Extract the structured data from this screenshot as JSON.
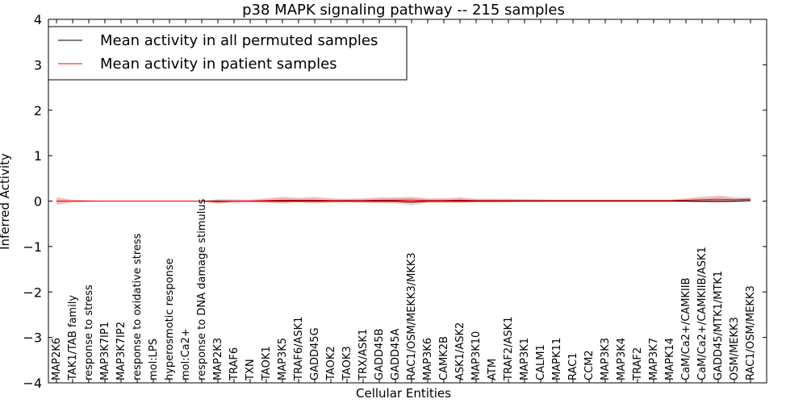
{
  "chart_data": {
    "type": "line",
    "title": "p38 MAPK signaling pathway -- 215 samples",
    "xlabel": "Cellular Entities",
    "ylabel": "Inferred Activity",
    "ylim": [
      -4,
      4
    ],
    "yticks": [
      -4,
      -3,
      -2,
      -1,
      0,
      1,
      2,
      3,
      4
    ],
    "ytick_labels": [
      "−4",
      "−3",
      "−2",
      "−1",
      "0",
      "1",
      "2",
      "3",
      "4"
    ],
    "legend_position": "top-left",
    "categories": [
      "MAP2K6",
      "TAK1/TAB family",
      "response to stress",
      "MAP3K7IP1",
      "MAP3K7IP2",
      "response to oxidative stress",
      "mol:LPS",
      "hyperosmotic response",
      "mol:Ca2+",
      "response to DNA damage stimulus",
      "MAP2K3",
      "TRAF6",
      "TXN",
      "TAOK1",
      "MAP3K5",
      "TRAF6/ASK1",
      "GADD45G",
      "TAOK2",
      "TAOK3",
      "TRX/ASK1",
      "GADD45B",
      "GADD45A",
      "RAC1/OSM/MEKK3/MKK3",
      "MAP3K6",
      "CAMK2B",
      "ASK1/ASK2",
      "MAP3K10",
      "ATM",
      "TRAF2/ASK1",
      "MAP3K1",
      "CALM1",
      "MAPK11",
      "RAC1",
      "CCM2",
      "MAP3K3",
      "MAP3K4",
      "TRAF2",
      "MAP3K7",
      "MAPK14",
      "CaM/Ca2+/CAMKIIB",
      "CaM/Ca2+/CAMKIIB/ASK1",
      "GADD45/MTK1/MTK1",
      "OSM/MEKK3",
      "RAC1/OSM/MEKK3"
    ],
    "series": [
      {
        "name": "Mean activity in all permuted samples",
        "color": "#000000",
        "band_color": "#c8c8d8",
        "values": [
          0,
          0,
          0,
          0,
          0,
          0,
          0,
          0,
          0,
          0,
          0,
          0,
          0,
          0,
          0,
          0,
          0,
          0,
          0,
          0,
          0,
          0,
          -0.02,
          0,
          0,
          0,
          0,
          0,
          0,
          0,
          0,
          0,
          0,
          0,
          0,
          0,
          0,
          0,
          0,
          0,
          0,
          0,
          0,
          0.01
        ],
        "band": [
          0.02,
          0.01,
          0.01,
          0.01,
          0.01,
          0.01,
          0.01,
          0.01,
          0.01,
          0.01,
          0.03,
          0.04,
          0.03,
          0.02,
          0.02,
          0.02,
          0.02,
          0.02,
          0.03,
          0.03,
          0.04,
          0.05,
          0.08,
          0.04,
          0.03,
          0.04,
          0.03,
          0.03,
          0.02,
          0.02,
          0.02,
          0.02,
          0.02,
          0.02,
          0.02,
          0.02,
          0.02,
          0.02,
          0.02,
          0.02,
          0.03,
          0.03,
          0.03,
          0.03
        ]
      },
      {
        "name": "Mean activity in patient samples",
        "color": "#ff0000",
        "band_color": "#f08080",
        "values": [
          0,
          0,
          0,
          0,
          0,
          0,
          0,
          0,
          0,
          0,
          -0.01,
          0,
          0,
          0.01,
          0.02,
          0.02,
          0.02,
          0.01,
          0.01,
          0.01,
          0.02,
          0.02,
          0.02,
          0.01,
          0.01,
          0.02,
          0.01,
          0.01,
          0.01,
          0.01,
          0.01,
          0.01,
          0.01,
          0.01,
          0.01,
          0.01,
          0.01,
          0.01,
          0.01,
          0.02,
          0.03,
          0.04,
          0.03,
          0.04
        ],
        "band": [
          0.08,
          0.03,
          0.02,
          0.01,
          0.01,
          0.01,
          0.01,
          0.01,
          0.01,
          0.01,
          0.05,
          0.03,
          0.03,
          0.05,
          0.07,
          0.05,
          0.07,
          0.05,
          0.04,
          0.05,
          0.06,
          0.06,
          0.07,
          0.05,
          0.05,
          0.06,
          0.04,
          0.04,
          0.04,
          0.03,
          0.03,
          0.02,
          0.02,
          0.02,
          0.02,
          0.02,
          0.02,
          0.02,
          0.02,
          0.04,
          0.06,
          0.08,
          0.05,
          0.04
        ]
      }
    ]
  }
}
